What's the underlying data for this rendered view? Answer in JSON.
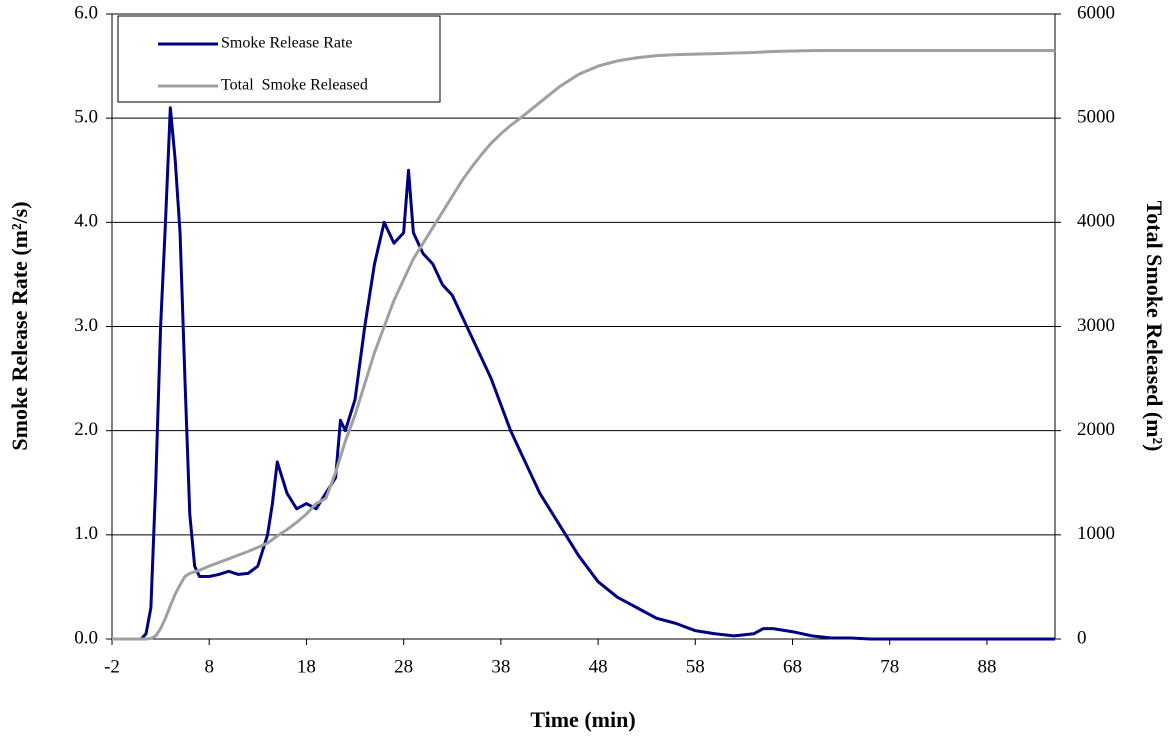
{
  "chart_data": {
    "type": "line",
    "x_label": "Time (min)",
    "y_label": "Smoke Release Rate (m²/s)",
    "y2_label": "Total Smoke Released (m²)",
    "x": [
      -2,
      0,
      1,
      1.5,
      2,
      2.5,
      3,
      3.5,
      4,
      4.5,
      5,
      5.5,
      6,
      6.5,
      7,
      8,
      9,
      10,
      11,
      12,
      13,
      14,
      14.5,
      15,
      16,
      17,
      18,
      19,
      20,
      21,
      21.5,
      22,
      23,
      24,
      25,
      26,
      27,
      28,
      28.5,
      29,
      30,
      31,
      32,
      33,
      34,
      35,
      36,
      37,
      38,
      39,
      40,
      42,
      44,
      46,
      48,
      50,
      52,
      54,
      56,
      58,
      60,
      62,
      64,
      65,
      66,
      68,
      70,
      72,
      74,
      76,
      80,
      85,
      90,
      95
    ],
    "series": [
      {
        "name": "Smoke Release Rate",
        "color": "#000080",
        "values": [
          0,
          0,
          0,
          0.05,
          0.3,
          1.5,
          3.0,
          4.0,
          5.1,
          4.6,
          3.9,
          2.5,
          1.2,
          0.7,
          0.6,
          0.6,
          0.62,
          0.65,
          0.62,
          0.63,
          0.7,
          1.0,
          1.3,
          1.7,
          1.4,
          1.25,
          1.3,
          1.25,
          1.4,
          1.55,
          2.1,
          2.0,
          2.3,
          3.0,
          3.6,
          4.0,
          3.8,
          3.9,
          4.5,
          3.9,
          3.7,
          3.6,
          3.4,
          3.3,
          3.1,
          2.9,
          2.7,
          2.5,
          2.25,
          2.0,
          1.8,
          1.4,
          1.1,
          0.8,
          0.55,
          0.4,
          0.3,
          0.2,
          0.15,
          0.08,
          0.05,
          0.03,
          0.05,
          0.1,
          0.1,
          0.07,
          0.03,
          0.01,
          0.01,
          0,
          0,
          0,
          0,
          0
        ]
      },
      {
        "name": "Total  Smoke Released",
        "color": "#a0a0a0",
        "axis": "y2",
        "values": [
          0,
          0,
          0,
          0,
          5,
          30,
          100,
          200,
          320,
          430,
          520,
          600,
          630,
          645,
          660,
          700,
          735,
          770,
          805,
          840,
          880,
          920,
          955,
          990,
          1050,
          1120,
          1200,
          1300,
          1350,
          1600,
          1750,
          1900,
          2150,
          2450,
          2750,
          3000,
          3250,
          3450,
          3550,
          3650,
          3800,
          3950,
          4100,
          4250,
          4400,
          4530,
          4650,
          4760,
          4850,
          4930,
          5000,
          5150,
          5300,
          5420,
          5500,
          5550,
          5580,
          5600,
          5610,
          5615,
          5620,
          5625,
          5630,
          5635,
          5640,
          5645,
          5648,
          5650,
          5650,
          5650,
          5650,
          5650,
          5650,
          5650
        ]
      }
    ],
    "xlim": [
      -2,
      95
    ],
    "xticks": [
      -2,
      8,
      18,
      28,
      38,
      48,
      58,
      68,
      78,
      88
    ],
    "ylim": [
      0,
      6
    ],
    "yticks": [
      {
        "value": 0,
        "label": "0.0"
      },
      {
        "value": 1,
        "label": "1.0"
      },
      {
        "value": 2,
        "label": "2.0"
      },
      {
        "value": 3,
        "label": "3.0"
      },
      {
        "value": 4,
        "label": "4.0"
      },
      {
        "value": 5,
        "label": "5.0"
      },
      {
        "value": 6,
        "label": "6.0"
      }
    ],
    "y2lim": [
      0,
      6000
    ],
    "y2ticks": [
      0,
      1000,
      2000,
      3000,
      4000,
      5000,
      6000
    ],
    "grid": true,
    "legend": "upper left"
  }
}
